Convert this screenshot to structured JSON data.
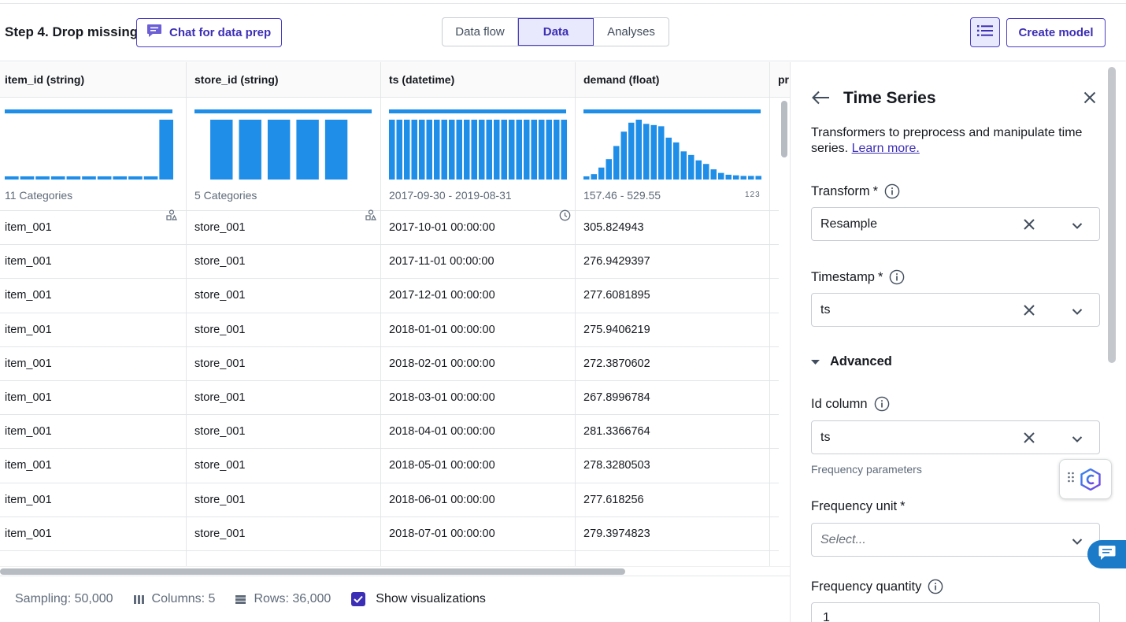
{
  "header": {
    "step_title": "Step 4. Drop missing",
    "chat_button_label": "Chat for data prep",
    "tabs": [
      {
        "label": "Data flow",
        "active": false
      },
      {
        "label": "Data",
        "active": true
      },
      {
        "label": "Analyses",
        "active": false
      }
    ],
    "list_icon": "list-icon",
    "create_model_label": "Create model"
  },
  "table": {
    "columns": [
      {
        "header": "item_id (string)",
        "summary": "11 Categories",
        "summary_icon": "categories-icon",
        "hist": [
          0.05,
          0.05,
          0.05,
          0.05,
          0.05,
          0.05,
          0.05,
          0.05,
          0.05,
          0.05,
          1.0
        ]
      },
      {
        "header": "store_id (string)",
        "summary": "5 Categories",
        "summary_icon": "categories-icon",
        "hist": [
          0.2,
          0.2,
          0.2,
          0.2,
          0.2
        ]
      },
      {
        "header": "ts (datetime)",
        "summary": "2017-09-30 - 2019-08-31",
        "summary_icon": "clock-icon",
        "hist": [
          1,
          1,
          1,
          1,
          1,
          1,
          1,
          1,
          1,
          1,
          1,
          1,
          1,
          1,
          1,
          1,
          1,
          1,
          1,
          1,
          1,
          1,
          1,
          1
        ]
      },
      {
        "header": "demand (float)",
        "summary": "157.46 - 529.55",
        "summary_icon": "123",
        "hist": [
          0.05,
          0.09,
          0.2,
          0.34,
          0.56,
          0.8,
          0.95,
          1.0,
          0.93,
          0.91,
          0.89,
          0.7,
          0.62,
          0.47,
          0.41,
          0.32,
          0.26,
          0.17,
          0.11,
          0.08,
          0.07,
          0.06,
          0.06,
          0.06
        ]
      },
      {
        "header": "pr",
        "summary": "",
        "summary_icon": "",
        "hist": []
      }
    ],
    "rows": [
      [
        "item_001",
        "store_001",
        "2017-10-01 00:00:00",
        "305.824943"
      ],
      [
        "item_001",
        "store_001",
        "2017-11-01 00:00:00",
        "276.9429397"
      ],
      [
        "item_001",
        "store_001",
        "2017-12-01 00:00:00",
        "277.6081895"
      ],
      [
        "item_001",
        "store_001",
        "2018-01-01 00:00:00",
        "275.9406219"
      ],
      [
        "item_001",
        "store_001",
        "2018-02-01 00:00:00",
        "272.3870602"
      ],
      [
        "item_001",
        "store_001",
        "2018-03-01 00:00:00",
        "267.8996784"
      ],
      [
        "item_001",
        "store_001",
        "2018-04-01 00:00:00",
        "281.3366764"
      ],
      [
        "item_001",
        "store_001",
        "2018-05-01 00:00:00",
        "278.3280503"
      ],
      [
        "item_001",
        "store_001",
        "2018-06-01 00:00:00",
        "277.618256"
      ],
      [
        "item_001",
        "store_001",
        "2018-07-01 00:00:00",
        "279.3974823"
      ]
    ],
    "bar_color": "#1e8ee8"
  },
  "footer": {
    "sampling": "Sampling: 50,000",
    "columns": "Columns: 5",
    "rows": "Rows: 36,000",
    "show_visualizations": "Show visualizations",
    "show_visualizations_checked": true
  },
  "panel": {
    "title": "Time Series",
    "description": "Transformers to preprocess and manipulate time series.",
    "learn_more": "Learn more.",
    "transform_label": "Transform",
    "transform_value": "Resample",
    "timestamp_label": "Timestamp",
    "timestamp_value": "ts",
    "advanced_label": "Advanced",
    "id_column_label": "Id column",
    "id_column_value": "ts",
    "frequency_parameters": "Frequency parameters",
    "frequency_unit_label": "Frequency unit",
    "frequency_unit_placeholder": "Select...",
    "frequency_quantity_label": "Frequency quantity",
    "frequency_quantity_value": "1",
    "required_marker": "*"
  },
  "colors": {
    "accent": "#3c2fb5",
    "accent_bg": "#e8e9fc",
    "bar": "#1e8ee8",
    "chat_bubble": "#1b7bc9"
  }
}
